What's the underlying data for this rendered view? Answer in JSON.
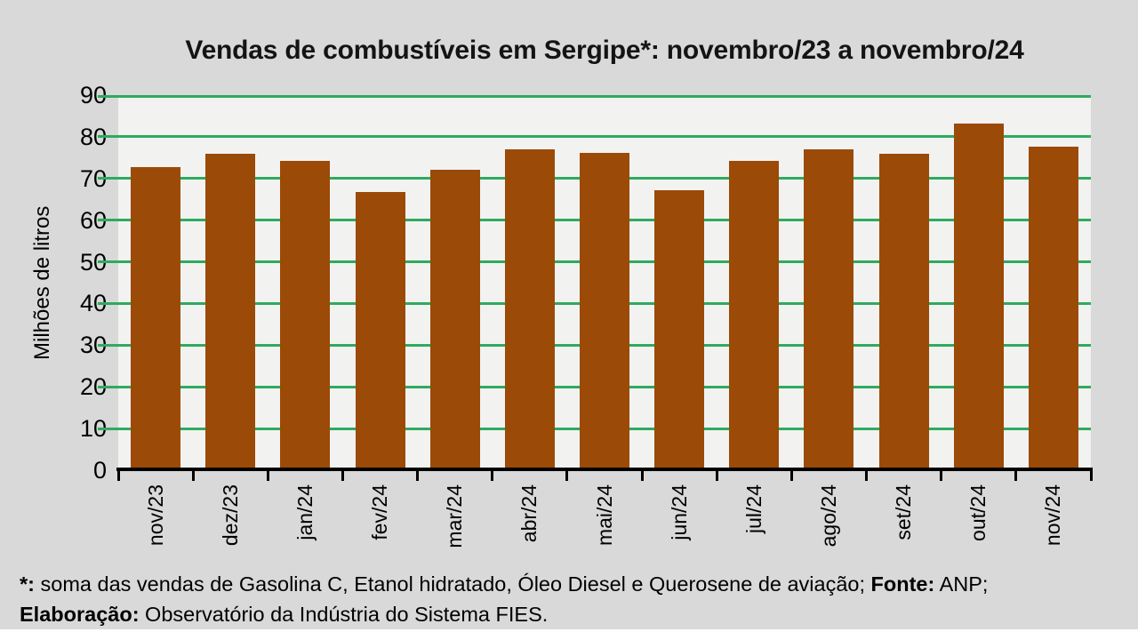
{
  "page": {
    "background": "#d9d9d9",
    "bottom_strip_color": "#ffffff"
  },
  "chart_data": {
    "type": "bar",
    "title": "Vendas de combustíveis em Sergipe*: novembro/23 a novembro/24",
    "xlabel": "",
    "ylabel": "Milhões de litros",
    "categories": [
      "nov/23",
      "dez/23",
      "jan/24",
      "fev/24",
      "mar/24",
      "abr/24",
      "mai/24",
      "jun/24",
      "jul/24",
      "ago/24",
      "set/24",
      "out/24",
      "nov/24"
    ],
    "values": [
      72.7,
      76.0,
      74.3,
      66.8,
      72.2,
      77.1,
      76.2,
      67.2,
      74.3,
      77.1,
      76.0,
      83.1,
      77.6
    ],
    "ylim": [
      0,
      90
    ],
    "yticks": [
      0,
      10,
      20,
      30,
      40,
      50,
      60,
      70,
      80,
      90
    ],
    "grid": true,
    "legend": "none",
    "bar_color": "#9b4a08",
    "grid_color": "#2eab5e",
    "plot_background": "#f2f2f1",
    "axis_color": "#000000"
  },
  "footnote": {
    "star_label": "*:",
    "line1_text": " soma das vendas de Gasolina C, Etanol hidratado, Óleo Diesel e Querosene de aviação; ",
    "fonte_label": "Fonte:",
    "fonte_text": " ANP;",
    "elab_label": "Elaboração:",
    "elab_text": " Observatório da Indústria do Sistema FIES."
  }
}
